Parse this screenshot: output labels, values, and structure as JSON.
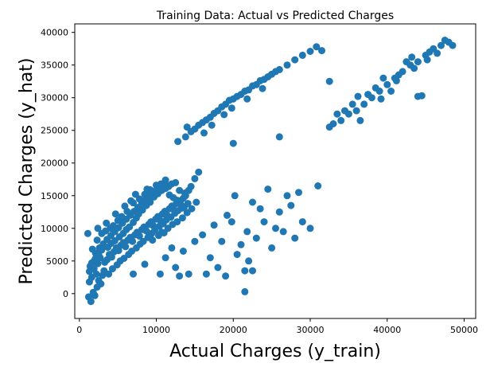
{
  "chart_data": {
    "type": "scatter",
    "title": "Training Data: Actual vs Predicted Charges",
    "xlabel": "Actual Charges (y_train)",
    "ylabel": "Predicted Charges (y_hat)",
    "xlim": [
      -600,
      51500
    ],
    "ylim": [
      -3800,
      41300
    ],
    "xticks": [
      0,
      10000,
      20000,
      30000,
      40000,
      50000
    ],
    "xtick_labels": [
      "0",
      "10000",
      "20000",
      "30000",
      "40000",
      "50000"
    ],
    "yticks": [
      0,
      5000,
      10000,
      15000,
      20000,
      25000,
      30000,
      35000,
      40000
    ],
    "ytick_labels": [
      "0",
      "5000",
      "10000",
      "15000",
      "20000",
      "25000",
      "30000",
      "35000",
      "40000"
    ],
    "grid": false,
    "marker_color": "#1f77b4",
    "points": [
      [
        1200,
        -500
      ],
      [
        1500,
        -1200
      ],
      [
        1800,
        200
      ],
      [
        2000,
        -300
      ],
      [
        2300,
        1000
      ],
      [
        1300,
        1800
      ],
      [
        1600,
        2500
      ],
      [
        2200,
        3000
      ],
      [
        2500,
        2000
      ],
      [
        2800,
        1500
      ],
      [
        3000,
        2800
      ],
      [
        3200,
        3500
      ],
      [
        1400,
        4200
      ],
      [
        1900,
        5000
      ],
      [
        2400,
        4600
      ],
      [
        2700,
        5500
      ],
      [
        3300,
        4800
      ],
      [
        3600,
        5200
      ],
      [
        3900,
        6000
      ],
      [
        4200,
        5600
      ],
      [
        4500,
        6400
      ],
      [
        4800,
        7000
      ],
      [
        5100,
        6600
      ],
      [
        5400,
        7400
      ],
      [
        5700,
        7800
      ],
      [
        6000,
        7200
      ],
      [
        6300,
        8200
      ],
      [
        6600,
        8600
      ],
      [
        6900,
        8000
      ],
      [
        7200,
        9000
      ],
      [
        7500,
        9400
      ],
      [
        7800,
        8800
      ],
      [
        8100,
        9800
      ],
      [
        8400,
        10200
      ],
      [
        8700,
        9600
      ],
      [
        9000,
        10600
      ],
      [
        9300,
        11000
      ],
      [
        9600,
        10400
      ],
      [
        9900,
        11400
      ],
      [
        10200,
        11800
      ],
      [
        10500,
        11200
      ],
      [
        10800,
        12200
      ],
      [
        11100,
        12600
      ],
      [
        11400,
        12000
      ],
      [
        11700,
        13000
      ],
      [
        12000,
        13400
      ],
      [
        12300,
        12800
      ],
      [
        12600,
        13800
      ],
      [
        12900,
        14200
      ],
      [
        13200,
        13600
      ],
      [
        13500,
        14600
      ],
      [
        13800,
        15000
      ],
      [
        2100,
        6200
      ],
      [
        2600,
        7000
      ],
      [
        3100,
        7600
      ],
      [
        3600,
        8300
      ],
      [
        4100,
        8900
      ],
      [
        4600,
        9500
      ],
      [
        5100,
        10100
      ],
      [
        5600,
        10800
      ],
      [
        6100,
        11400
      ],
      [
        6600,
        12000
      ],
      [
        7100,
        12600
      ],
      [
        7600,
        13200
      ],
      [
        8100,
        13800
      ],
      [
        8600,
        14400
      ],
      [
        9100,
        15000
      ],
      [
        9600,
        15600
      ],
      [
        10100,
        16200
      ],
      [
        10600,
        16800
      ],
      [
        11100,
        17000
      ],
      [
        11600,
        16400
      ],
      [
        3400,
        9600
      ],
      [
        4000,
        10000
      ],
      [
        4400,
        10400
      ],
      [
        5000,
        11200
      ],
      [
        5500,
        11800
      ],
      [
        6200,
        12600
      ],
      [
        7000,
        13900
      ],
      [
        7800,
        14500
      ],
      [
        8500,
        15200
      ],
      [
        9200,
        15900
      ],
      [
        3800,
        3000
      ],
      [
        4300,
        3800
      ],
      [
        4900,
        4400
      ],
      [
        5300,
        5000
      ],
      [
        5800,
        5400
      ],
      [
        6400,
        6000
      ],
      [
        6800,
        6500
      ],
      [
        7400,
        7000
      ],
      [
        7900,
        7600
      ],
      [
        8300,
        8000
      ],
      [
        8900,
        8600
      ],
      [
        9400,
        9200
      ],
      [
        9800,
        9700
      ],
      [
        10400,
        10300
      ],
      [
        10900,
        10700
      ],
      [
        11300,
        11300
      ],
      [
        11900,
        11700
      ],
      [
        12400,
        12300
      ],
      [
        12800,
        12700
      ],
      [
        13300,
        13100
      ],
      [
        1100,
        9200
      ],
      [
        2400,
        10000
      ],
      [
        1700,
        6800
      ],
      [
        2300,
        8200
      ],
      [
        2900,
        9200
      ],
      [
        3500,
        10800
      ],
      [
        4700,
        12200
      ],
      [
        5900,
        13400
      ],
      [
        6700,
        14200
      ],
      [
        7300,
        15200
      ],
      [
        8800,
        16000
      ],
      [
        10000,
        16600
      ],
      [
        11200,
        17400
      ],
      [
        12000,
        16800
      ],
      [
        12500,
        17000
      ],
      [
        13000,
        15800
      ],
      [
        13700,
        15400
      ],
      [
        14500,
        16400
      ],
      [
        15000,
        17600
      ],
      [
        15500,
        18600
      ],
      [
        10700,
        9400
      ],
      [
        11500,
        10000
      ],
      [
        12100,
        10600
      ],
      [
        12700,
        11000
      ],
      [
        13400,
        11600
      ],
      [
        14000,
        12400
      ],
      [
        14600,
        13000
      ],
      [
        15200,
        14000
      ],
      [
        14200,
        15800
      ],
      [
        9500,
        8200
      ],
      [
        10300,
        8900
      ],
      [
        11000,
        9300
      ],
      [
        1300,
        3400
      ],
      [
        1600,
        4700
      ],
      [
        1900,
        3800
      ],
      [
        2100,
        5400
      ],
      [
        2500,
        6000
      ],
      [
        2900,
        6700
      ],
      [
        3200,
        7300
      ],
      [
        3700,
        7100
      ],
      [
        4100,
        7700
      ],
      [
        4600,
        8100
      ],
      [
        5200,
        8700
      ],
      [
        5700,
        9200
      ],
      [
        6100,
        9800
      ],
      [
        6500,
        10200
      ],
      [
        7000,
        10900
      ],
      [
        7400,
        11600
      ],
      [
        7700,
        12200
      ],
      [
        8200,
        12800
      ],
      [
        8700,
        13500
      ],
      [
        9200,
        14000
      ],
      [
        9700,
        14800
      ],
      [
        10200,
        15300
      ],
      [
        10700,
        15800
      ],
      [
        11200,
        16100
      ],
      [
        11700,
        15100
      ],
      [
        12200,
        14700
      ],
      [
        12700,
        14300
      ],
      [
        13100,
        14100
      ],
      [
        13600,
        13200
      ],
      [
        14100,
        13800
      ],
      [
        7000,
        3000
      ],
      [
        8500,
        4500
      ],
      [
        10500,
        3000
      ],
      [
        11200,
        5500
      ],
      [
        12000,
        7000
      ],
      [
        12500,
        4000
      ],
      [
        13000,
        2700
      ],
      [
        13500,
        6500
      ],
      [
        14200,
        3000
      ],
      [
        15000,
        8000
      ],
      [
        16000,
        9000
      ],
      [
        16500,
        3000
      ],
      [
        17000,
        5500
      ],
      [
        17500,
        10500
      ],
      [
        18000,
        4000
      ],
      [
        18500,
        8000
      ],
      [
        19000,
        2700
      ],
      [
        19200,
        12000
      ],
      [
        19800,
        11000
      ],
      [
        20200,
        15000
      ],
      [
        20500,
        6000
      ],
      [
        21000,
        7500
      ],
      [
        21500,
        3500
      ],
      [
        21800,
        9500
      ],
      [
        22000,
        5000
      ],
      [
        22500,
        14000
      ],
      [
        23000,
        8500
      ],
      [
        23500,
        13000
      ],
      [
        24000,
        11000
      ],
      [
        24500,
        16000
      ],
      [
        25000,
        7000
      ],
      [
        25500,
        10000
      ],
      [
        26000,
        12500
      ],
      [
        26500,
        9500
      ],
      [
        27000,
        15000
      ],
      [
        27500,
        13500
      ],
      [
        28000,
        8500
      ],
      [
        28500,
        15500
      ],
      [
        29000,
        11000
      ],
      [
        30000,
        10000
      ],
      [
        31000,
        16500
      ],
      [
        21500,
        300
      ],
      [
        22500,
        3500
      ],
      [
        26000,
        24000
      ],
      [
        20000,
        23000
      ],
      [
        12800,
        23300
      ],
      [
        13800,
        24000
      ],
      [
        15000,
        25200
      ],
      [
        16000,
        26200
      ],
      [
        17000,
        27000
      ],
      [
        18000,
        28000
      ],
      [
        19000,
        29000
      ],
      [
        20000,
        29800
      ],
      [
        21000,
        30500
      ],
      [
        22000,
        31200
      ],
      [
        23000,
        32000
      ],
      [
        24000,
        32800
      ],
      [
        25000,
        33600
      ],
      [
        26000,
        34300
      ],
      [
        27000,
        35000
      ],
      [
        28000,
        35800
      ],
      [
        29000,
        36500
      ],
      [
        30000,
        37100
      ],
      [
        30800,
        37800
      ],
      [
        31500,
        37200
      ],
      [
        14500,
        24800
      ],
      [
        15500,
        25800
      ],
      [
        16500,
        26600
      ],
      [
        17500,
        27600
      ],
      [
        18500,
        28600
      ],
      [
        19500,
        29600
      ],
      [
        20500,
        30200
      ],
      [
        21500,
        31000
      ],
      [
        22500,
        31800
      ],
      [
        23500,
        32600
      ],
      [
        24500,
        33200
      ],
      [
        25500,
        34000
      ],
      [
        14000,
        25500
      ],
      [
        16200,
        24600
      ],
      [
        17200,
        25800
      ],
      [
        18800,
        27400
      ],
      [
        19800,
        28400
      ],
      [
        21800,
        29800
      ],
      [
        23800,
        31400
      ],
      [
        32500,
        32500
      ],
      [
        32500,
        25500
      ],
      [
        33000,
        26000
      ],
      [
        34000,
        26500
      ],
      [
        35000,
        27500
      ],
      [
        36000,
        28000
      ],
      [
        37000,
        29000
      ],
      [
        38000,
        30000
      ],
      [
        39000,
        31000
      ],
      [
        40000,
        32000
      ],
      [
        41000,
        33000
      ],
      [
        42000,
        34000
      ],
      [
        43000,
        35000
      ],
      [
        44000,
        35500
      ],
      [
        45000,
        36500
      ],
      [
        46000,
        37500
      ],
      [
        47000,
        38000
      ],
      [
        48000,
        38500
      ],
      [
        48500,
        38000
      ],
      [
        33500,
        27500
      ],
      [
        34500,
        28000
      ],
      [
        35500,
        29000
      ],
      [
        36500,
        26500
      ],
      [
        37500,
        30500
      ],
      [
        38500,
        31500
      ],
      [
        39500,
        33000
      ],
      [
        40500,
        31000
      ],
      [
        41500,
        33500
      ],
      [
        42500,
        35500
      ],
      [
        43500,
        34500
      ],
      [
        44500,
        30300
      ],
      [
        45500,
        37000
      ],
      [
        46500,
        36800
      ],
      [
        47500,
        38800
      ],
      [
        44000,
        30200
      ],
      [
        36200,
        30200
      ],
      [
        39200,
        29800
      ],
      [
        41200,
        32600
      ],
      [
        43200,
        36200
      ],
      [
        45200,
        35800
      ]
    ]
  }
}
